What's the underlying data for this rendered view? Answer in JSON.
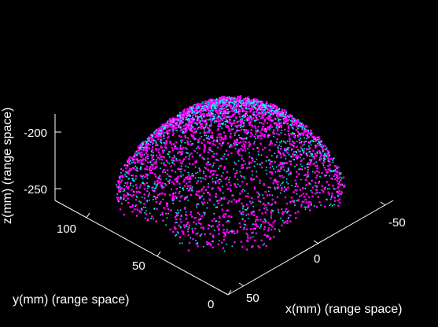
{
  "chart_data": {
    "type": "scatter",
    "style": "3d-point-cloud",
    "background": "#000000",
    "axis_color": "#ffffff",
    "xlabel": "x(mm) (range space)",
    "ylabel": "y(mm) (range space)",
    "zlabel": "z(mm) (range space)",
    "x_ticks": [
      "-50",
      "0",
      "50"
    ],
    "y_ticks": [
      "0",
      "50",
      "100"
    ],
    "z_ticks": [
      "-200",
      "-250"
    ],
    "xlim": [
      -70,
      80
    ],
    "ylim": [
      0,
      120
    ],
    "zlim": [
      -275,
      -175
    ],
    "grid": false,
    "series": [
      {
        "color": "#ff00ff",
        "surface": "dome",
        "peak_z": -185,
        "base_z": -250,
        "center": [
          0,
          60
        ]
      },
      {
        "color": "#00ffff",
        "surface": "dome",
        "peak_z": -186,
        "base_z": -250,
        "center": [
          0,
          60
        ]
      }
    ]
  }
}
